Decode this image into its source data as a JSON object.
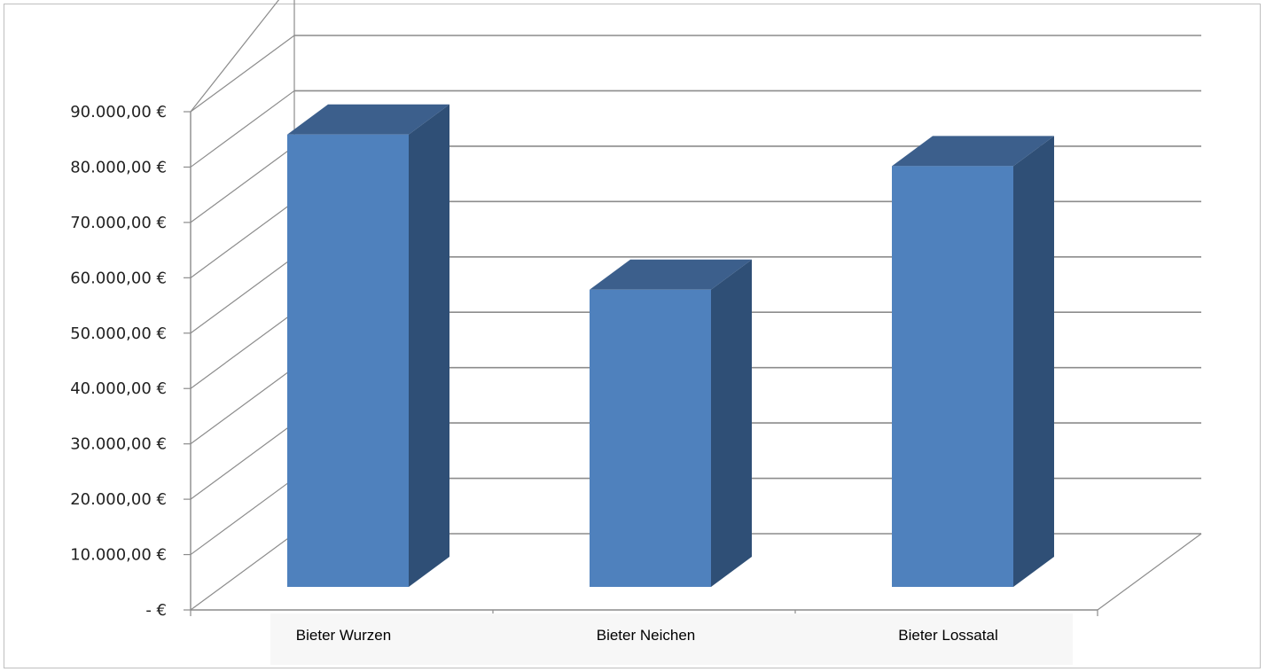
{
  "chart_data": {
    "type": "bar",
    "style": "3d-column",
    "categories": [
      "Bieter Wurzen",
      "Bieter Neichen",
      "Bieter Lossatal"
    ],
    "values": [
      86000,
      56500,
      80000
    ],
    "ylim": [
      0,
      90000
    ],
    "yticks": [
      0,
      10000,
      20000,
      30000,
      40000,
      50000,
      60000,
      70000,
      80000,
      90000
    ],
    "ytick_labels": [
      "-  €",
      "10.000,00 €",
      "20.000,00 €",
      "30.000,00 €",
      "40.000,00 €",
      "50.000,00 €",
      "60.000,00 €",
      "70.000,00 €",
      "80.000,00 €",
      "90.000,00 €"
    ],
    "grid": true,
    "legend": "none",
    "colors": {
      "front": "#4f81bd",
      "side": "#2f4f76",
      "top": "#3c5f8c",
      "grid": "#8c8c8c"
    }
  }
}
